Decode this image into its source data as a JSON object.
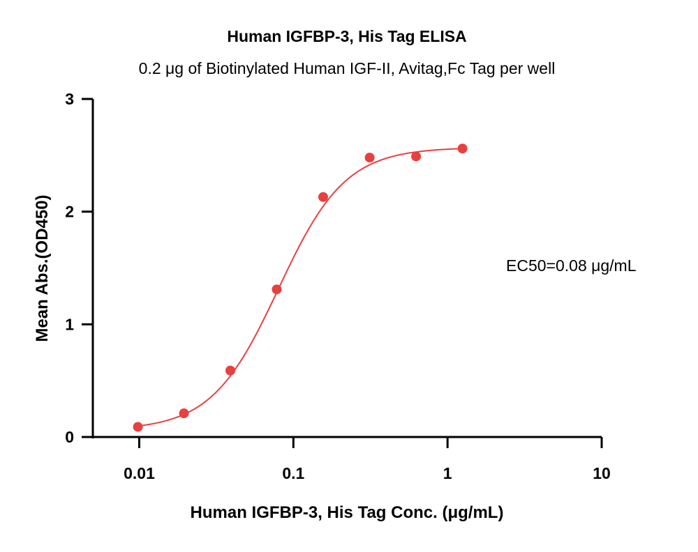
{
  "chart_data": {
    "type": "scatter",
    "title": "Human IGFBP-3, His Tag ELISA",
    "subtitle": "0.2 μg of Biotinylated Human IGF-II, Avitag,Fc Tag per well",
    "xlabel": "Human IGFBP-3, His Tag Conc. (μg/mL)",
    "ylabel": "Mean Abs.(OD450)",
    "x_scale": "log",
    "xlim": [
      0.005,
      10
    ],
    "ylim": [
      0,
      3
    ],
    "x_ticks": [
      0.01,
      0.1,
      1,
      10
    ],
    "x_tick_labels": [
      "0.01",
      "0.1",
      "1",
      "10"
    ],
    "y_ticks": [
      0,
      1,
      2,
      3
    ],
    "y_tick_labels": [
      "0",
      "1",
      "2",
      "3"
    ],
    "grid": false,
    "annotation": "EC50=0.08 μg/mL",
    "color": "#e8403f",
    "series": [
      {
        "points": [
          {
            "x": 0.0098,
            "y": 0.09
          },
          {
            "x": 0.0195,
            "y": 0.21
          },
          {
            "x": 0.039,
            "y": 0.59
          },
          {
            "x": 0.078,
            "y": 1.31
          },
          {
            "x": 0.156,
            "y": 2.13
          },
          {
            "x": 0.3125,
            "y": 2.48
          },
          {
            "x": 0.625,
            "y": 2.49
          },
          {
            "x": 1.25,
            "y": 2.56
          }
        ]
      }
    ],
    "fit": {
      "model": "4PL",
      "bottom": 0.06,
      "top": 2.57,
      "ec50": 0.08,
      "hill": 2.0,
      "x_range": [
        0.0098,
        1.25
      ]
    }
  }
}
